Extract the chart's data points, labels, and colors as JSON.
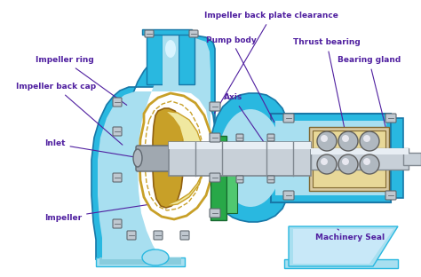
{
  "bg_color": "#ffffff",
  "pump_blue": "#29b8e0",
  "pump_dark_blue": "#1878a8",
  "pump_light_blue": "#a8dff0",
  "pump_mid_blue": "#58c8e8",
  "impeller_yellow": "#e8d878",
  "impeller_gold": "#c8a028",
  "impeller_light": "#f0e8a0",
  "shaft_gray": "#c8d0d8",
  "shaft_light": "#e8eef4",
  "shaft_dark": "#808890",
  "green_seal": "#28a848",
  "green_seal2": "#50c870",
  "bearing_beige": "#d8c8a0",
  "bearing_gray": "#b0b8c0",
  "label_color": "#5020a0",
  "figsize": [
    4.74,
    3.12
  ],
  "dpi": 100,
  "labels": {
    "impeller_ring": "Impeller ring",
    "impeller_back_cap": "Impeller back cap",
    "inlet": "Inlet",
    "impeller": "Impeller",
    "impeller_back_plate": "Impeller back plate clearance",
    "pump_body": "Pump body",
    "axis": "Axis",
    "thrust_bearing": "Thrust bearing",
    "bearing_gland": "Bearing gland",
    "machinery_seal": "Machinery Seal"
  }
}
